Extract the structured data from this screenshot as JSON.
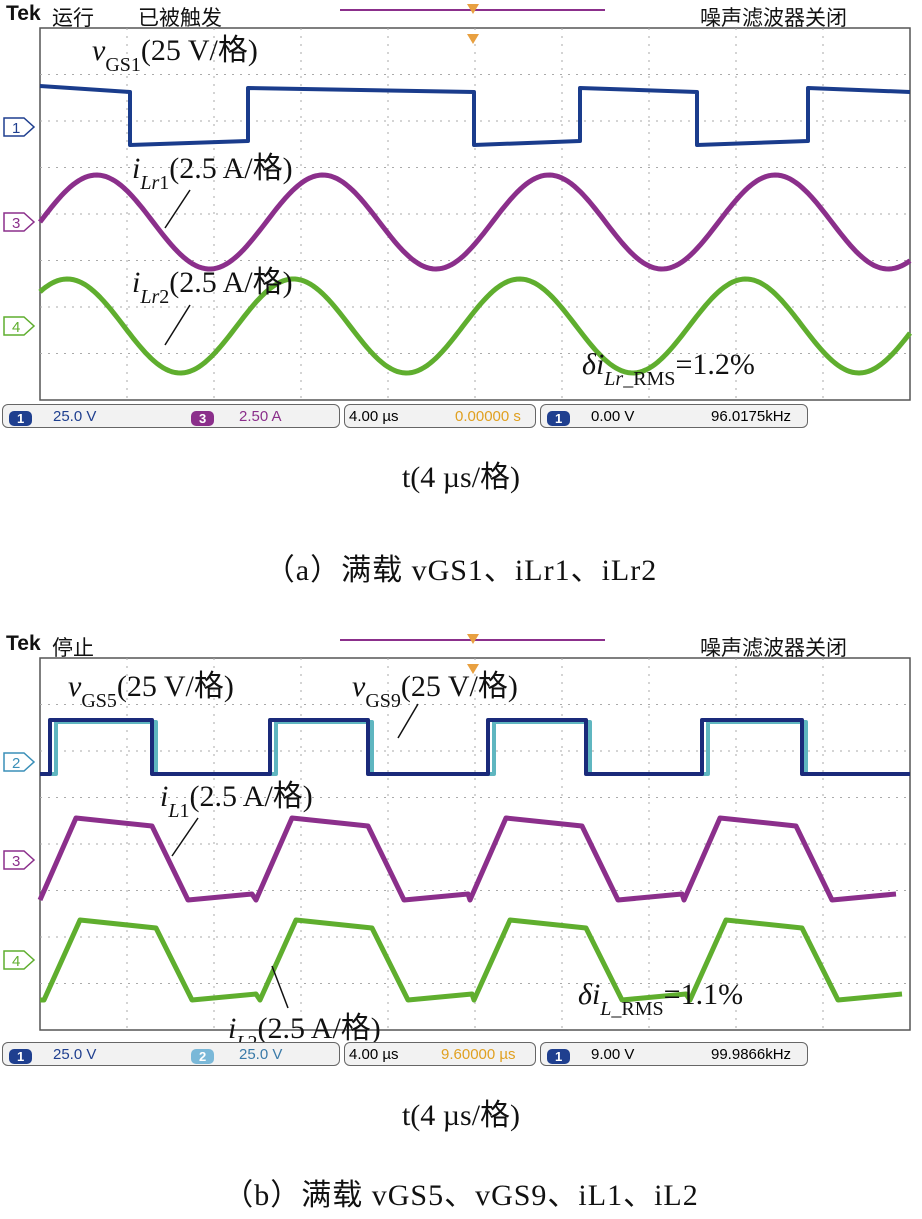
{
  "panels": [
    {
      "id": "a",
      "header": {
        "brand": "Tek",
        "run_state": "运行",
        "trigger_state": "已被触发",
        "filter": "噪声滤波器关闭"
      },
      "channel_markers": [
        "1",
        "3",
        "4"
      ],
      "labels": {
        "ch1": {
          "var": "v",
          "sub": "GS1",
          "scale": "(25 V/格)"
        },
        "ch3": {
          "var": "i",
          "sub_it": "Lr",
          "sub": "1",
          "scale": "(2.5 A/格)"
        },
        "ch4": {
          "var": "i",
          "sub_it": "Lr",
          "sub": "2",
          "scale": "(2.5 A/格)"
        },
        "delta": {
          "prefix": "δi",
          "sub_it": "Lr",
          "sub": "_RMS",
          "value": "=1.2%"
        }
      },
      "status": {
        "ch_a": "1",
        "ch_a_scale": "25.0 V",
        "ch_b": "3",
        "ch_b_scale": "2.50 A",
        "timebase": "4.00 µs",
        "offset": "0.00000 s",
        "trig_ch": "1",
        "trig_level": "0.00 V",
        "freq": "96.0175kHz"
      },
      "time_axis": "t(4 µs/格)",
      "caption": {
        "prefix": "（a）满载 ",
        "items": "vGS1、iLr1、iLr2"
      },
      "chart_data": {
        "type": "line",
        "x_unit": "µs",
        "x_div": 4,
        "x_range": [
          0,
          40
        ],
        "series": [
          {
            "name": "vGS1",
            "channel": "1",
            "color": "#1a3c8c",
            "shape": "square",
            "period_us": 10.4,
            "amplitude_div": 1.1
          },
          {
            "name": "iLr1",
            "channel": "3",
            "color": "#8b2f8b",
            "shape": "sine",
            "period_us": 10.4,
            "amplitude_div": 1.0
          },
          {
            "name": "iLr2",
            "channel": "4",
            "color": "#5fae2e",
            "shape": "sine",
            "period_us": 10.4,
            "amplitude_div": 1.0
          }
        ]
      }
    },
    {
      "id": "b",
      "header": {
        "brand": "Tek",
        "run_state": "停止",
        "trigger_state": "",
        "filter": "噪声滤波器关闭"
      },
      "channel_markers": [
        "2",
        "3",
        "4"
      ],
      "labels": {
        "ch1": {
          "var": "v",
          "sub": "GS5",
          "scale": "(25 V/格)"
        },
        "ch2": {
          "var": "v",
          "sub": "GS9",
          "scale": "(25 V/格)"
        },
        "ch3": {
          "var": "i",
          "sub_it": "L",
          "sub": "1",
          "scale": "(2.5 A/格)"
        },
        "ch4": {
          "var": "i",
          "sub_it": "L",
          "sub": "2",
          "scale": "(2.5 A/格)"
        },
        "delta": {
          "prefix": "δi",
          "sub_it": "L",
          "sub": "_RMS",
          "value": "=1.1%"
        }
      },
      "status": {
        "ch_a": "1",
        "ch_a_scale": "25.0 V",
        "ch_b": "2",
        "ch_b_scale": "25.0 V",
        "timebase": "4.00 µs",
        "offset": "9.60000 µs",
        "trig_ch": "1",
        "trig_level": "9.00 V",
        "freq": "99.9866kHz"
      },
      "time_axis": "t(4 µs/格)",
      "caption": {
        "prefix": "（b）满载 ",
        "items": "vGS5、vGS9、iL1、iL2"
      },
      "chart_data": {
        "type": "line",
        "x_unit": "µs",
        "x_div": 4,
        "x_range": [
          0,
          40
        ],
        "series": [
          {
            "name": "vGS5",
            "channel": "1",
            "color": "#1a2a7a",
            "shape": "pulse",
            "period_us": 10.0
          },
          {
            "name": "vGS9",
            "channel": "2",
            "color": "#5fb6c0",
            "shape": "pulse",
            "period_us": 10.0
          },
          {
            "name": "iL1",
            "channel": "3",
            "color": "#8b2f8b",
            "shape": "trapezoid",
            "period_us": 10.0
          },
          {
            "name": "iL2",
            "channel": "4",
            "color": "#5fae2e",
            "shape": "trapezoid",
            "period_us": 10.0
          }
        ]
      }
    }
  ]
}
